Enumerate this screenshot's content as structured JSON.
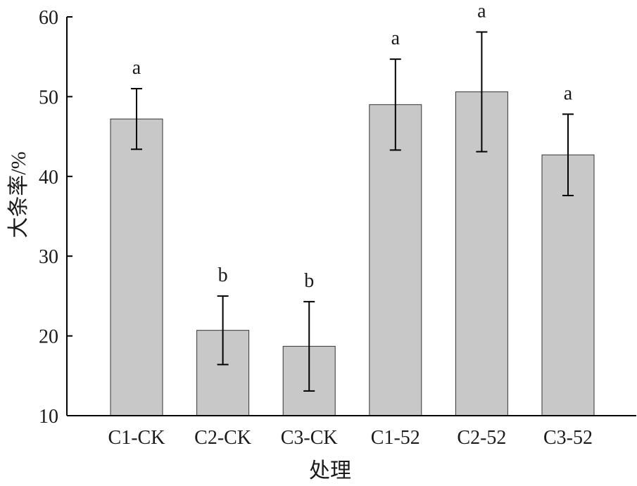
{
  "chart_data": {
    "type": "bar",
    "categories": [
      "C1-CK",
      "C2-CK",
      "C3-CK",
      "C1-52",
      "C2-52",
      "C3-52"
    ],
    "values": [
      47.2,
      20.7,
      18.7,
      49.0,
      50.6,
      42.7
    ],
    "error": [
      3.8,
      4.3,
      5.6,
      5.7,
      7.5,
      5.1
    ],
    "significance": [
      "a",
      "b",
      "b",
      "a",
      "a",
      "a"
    ],
    "xlabel": "处理",
    "ylabel": "大条率/%",
    "ylim": [
      10,
      60
    ],
    "yticks": [
      10,
      20,
      30,
      40,
      50,
      60
    ],
    "bar_color": "#c8c8c8",
    "grid": false
  }
}
